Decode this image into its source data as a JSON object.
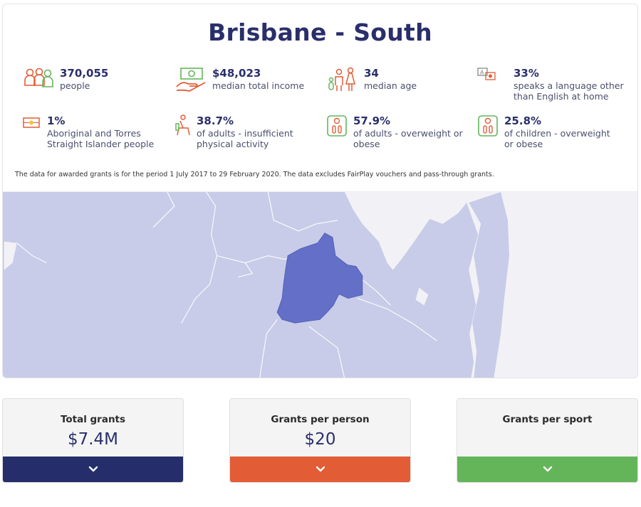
{
  "title": "Brisbane - South",
  "stats": [
    {
      "value": "370,055",
      "label": "people",
      "icon": "people-icon"
    },
    {
      "value": "$48,023",
      "label": "median total income",
      "icon": "income-icon"
    },
    {
      "value": "34",
      "label": "median age",
      "icon": "age-icon"
    },
    {
      "value": "33%",
      "label1": "speaks a language other",
      "label2": "than English at home",
      "icon": "language-icon"
    },
    {
      "value": "1%",
      "label1": "Aboriginal and Torres",
      "label2": "Straight Islander people",
      "icon": "flag-icon"
    },
    {
      "value": "38.7%",
      "label1": "of adults - insufficient",
      "label2": "physical activity",
      "icon": "inactivity-icon"
    },
    {
      "value": "57.9%",
      "label1": "of adults - overweight or",
      "label2": "obese",
      "icon": "adult-scale-icon"
    },
    {
      "value": "25.8%",
      "label1": "of children - overweight",
      "label2": "or obese",
      "icon": "child-scale-icon"
    }
  ],
  "note": "The data for awarded grants is for the period 1 July 2017 to 29 February 2020. The data excludes FairPlay vouchers and pass-through grants.",
  "colors": {
    "navy": "#252e6a",
    "orange": "#e25c36",
    "green": "#64b55a",
    "map_bg": "#c8cce8",
    "region": "#6470c7",
    "water": "#f2f2f6"
  },
  "tiles": [
    {
      "label": "Total grants",
      "value": "$7.4M",
      "color": "#252e6a"
    },
    {
      "label": "Grants per person",
      "value": "$20",
      "color": "#e25c36"
    },
    {
      "label": "Grants per sport",
      "value": "",
      "color": "#64b55a"
    }
  ]
}
